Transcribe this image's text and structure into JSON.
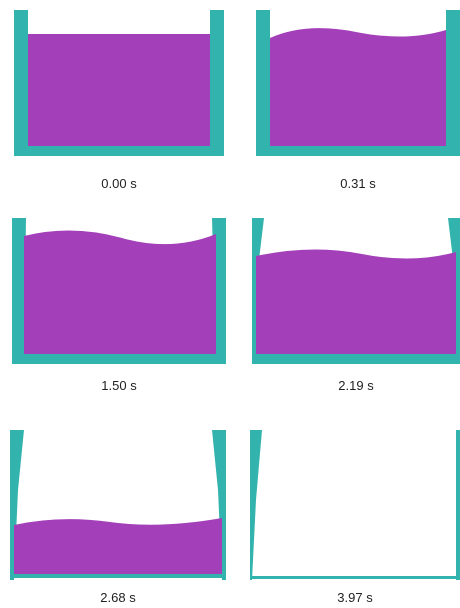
{
  "colors": {
    "particle": "#a33fb8",
    "wall": "#33b3ad",
    "background": "#ffffff"
  },
  "frames": [
    {
      "caption": "0.00 s",
      "fill_level": 0.83,
      "state": "packed"
    },
    {
      "caption": "0.31 s",
      "fill_level": 0.85,
      "state": "settling"
    },
    {
      "caption": "1.50 s",
      "fill_level": 0.9,
      "state": "walls-dissolving"
    },
    {
      "caption": "2.19 s",
      "fill_level": 0.75,
      "state": "walls-dissolving"
    },
    {
      "caption": "2.68 s",
      "fill_level": 0.45,
      "state": "draining"
    },
    {
      "caption": "3.97 s",
      "fill_level": 0.0,
      "state": "empty"
    }
  ]
}
